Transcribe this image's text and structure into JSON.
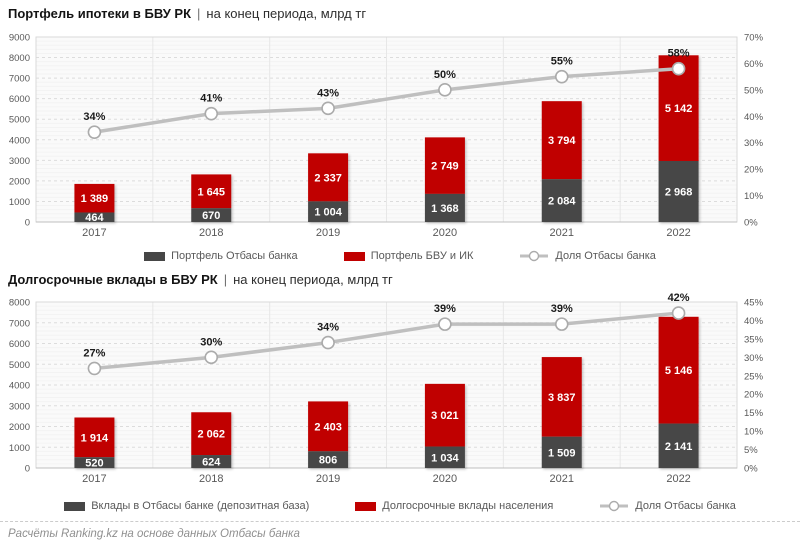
{
  "footer": {
    "text": "Расчёты Ranking.kz на основе данных Отбасы банка"
  },
  "colors": {
    "bar_dark": "#464646",
    "bar_red": "#C00000",
    "line": "#BFBFBF",
    "marker_fill": "#FFFFFF",
    "marker_stroke": "#ABABAB",
    "plot_bg": "#FAFAFA",
    "grid_major": "#DCDCDC",
    "grid_minor": "#F3F3F3",
    "band_separator": "#E7E7E7",
    "plot_border": "#D9D9D9",
    "axis_line": "#BFBFBF"
  },
  "chart_data": [
    {
      "type": "bar",
      "subtype": "stacked-bar-with-line",
      "title_bold": "Портфель ипотеки в БВУ РК",
      "title_sep": "|",
      "title_unit": "на конец периода, млрд тг",
      "categories": [
        "2017",
        "2018",
        "2019",
        "2020",
        "2021",
        "2022"
      ],
      "series": [
        {
          "name": "Портфель Отбасы банка",
          "role": "bar_dark",
          "values": [
            464,
            670,
            1004,
            1368,
            2084,
            2968
          ]
        },
        {
          "name": "Портфель БВУ и ИК",
          "role": "bar_red",
          "values": [
            1389,
            1645,
            2337,
            2749,
            3794,
            5142
          ]
        }
      ],
      "line": {
        "name": "Доля Отбасы банка",
        "values_pct": [
          34,
          41,
          43,
          50,
          55,
          58
        ]
      },
      "left_axis": {
        "min": 0,
        "max": 9000,
        "step": 1000
      },
      "right_axis": {
        "min": 0,
        "max": 70,
        "step": 10,
        "suffix": "%"
      },
      "grid": true,
      "legend_position": "bottom"
    },
    {
      "type": "bar",
      "subtype": "stacked-bar-with-line",
      "title_bold": "Долгосрочные вклады в БВУ РК",
      "title_sep": "|",
      "title_unit": "на конец периода, млрд тг",
      "categories": [
        "2017",
        "2018",
        "2019",
        "2020",
        "2021",
        "2022"
      ],
      "series": [
        {
          "name": "Вклады в Отбасы банке (депозитная база)",
          "role": "bar_dark",
          "values": [
            520,
            624,
            806,
            1034,
            1509,
            2141
          ]
        },
        {
          "name": "Долгосрочные вклады населения",
          "role": "bar_red",
          "values": [
            1914,
            2062,
            2403,
            3021,
            3837,
            5146
          ]
        }
      ],
      "line": {
        "name": "Доля Отбасы банка",
        "values_pct": [
          27,
          30,
          34,
          39,
          39,
          42
        ]
      },
      "left_axis": {
        "min": 0,
        "max": 8000,
        "step": 1000
      },
      "right_axis": {
        "min": 0,
        "max": 45,
        "step": 5,
        "suffix": "%"
      },
      "grid": true,
      "legend_position": "bottom"
    }
  ]
}
